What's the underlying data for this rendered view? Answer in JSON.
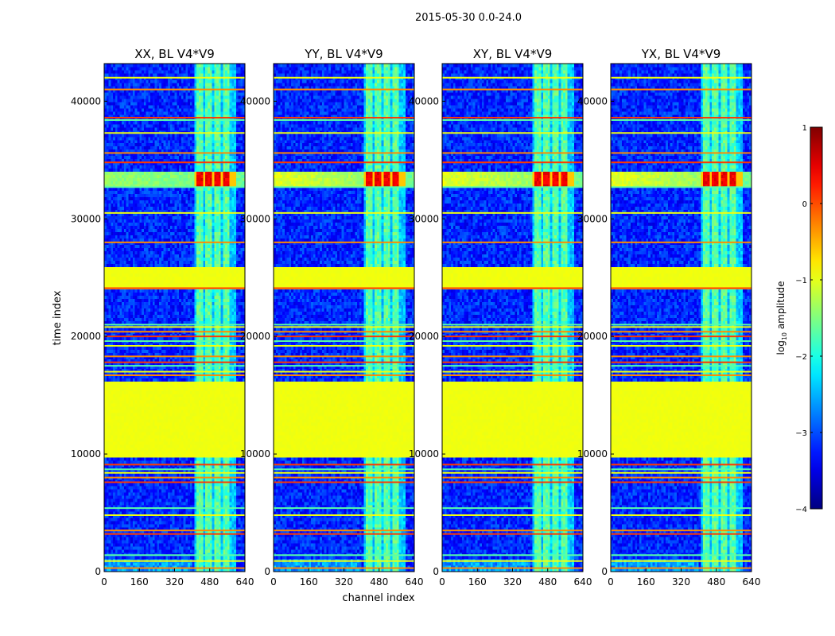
{
  "chart_data": {
    "type": "heatmap",
    "suptitle": "2015-05-30 0.0-24.0",
    "xlabel": "channel index",
    "ylabel": "time index",
    "xlim": [
      0,
      640
    ],
    "ylim": [
      0,
      43200
    ],
    "xticks": [
      0,
      160,
      320,
      480,
      640
    ],
    "yticks": [
      0,
      10000,
      20000,
      30000,
      40000
    ],
    "panels": [
      {
        "title": "XX, BL V4*V9",
        "pol": "XX"
      },
      {
        "title": "YY, BL V4*V9",
        "pol": "YY"
      },
      {
        "title": "XY, BL V4*V9",
        "pol": "XY"
      },
      {
        "title": "YX, BL V4*V9",
        "pol": "YX"
      }
    ],
    "colorbar": {
      "label": "log10 amplitude",
      "label_main": "log",
      "label_sub": "10",
      "label_tail": " amplitude",
      "range": [
        -4,
        1
      ],
      "ticks": [
        1,
        0,
        -1,
        -2,
        -3,
        -4
      ],
      "tick_labels": [
        "1",
        "0",
        "−1",
        "−2",
        "−3",
        "−4"
      ],
      "colormap": "jet"
    },
    "features": {
      "flagged_time_ranges": [
        [
          9700,
          16300
        ],
        [
          24000,
          26000
        ]
      ],
      "flagged_value": -0.95,
      "rfi_channel_range": [
        410,
        600
      ],
      "rfi_channel_blocks": [
        [
          418,
          450
        ],
        [
          458,
          490
        ],
        [
          500,
          532
        ],
        [
          542,
          574
        ]
      ],
      "burst_time_range": [
        32800,
        34000
      ],
      "burst_peak_value": 0.6,
      "background_value": -3.2,
      "rfi_horizontal_times": [
        300,
        900,
        1400,
        3200,
        3500,
        4800,
        5400,
        7600,
        8000,
        8400,
        8700,
        9100,
        16700,
        17000,
        17500,
        17800,
        18300,
        19200,
        19600,
        20000,
        20400,
        20800,
        21000,
        24100,
        28000,
        30500,
        32700,
        34800,
        35600,
        37300,
        38400,
        38600,
        41000,
        42000
      ]
    }
  }
}
